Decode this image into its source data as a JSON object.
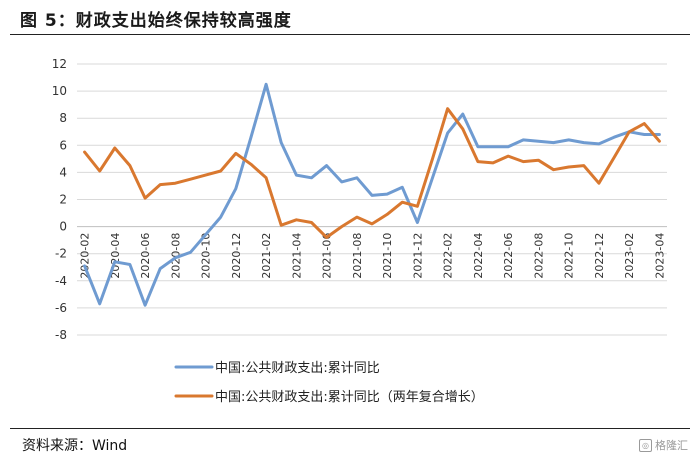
{
  "figure": {
    "title": "图 5：财政支出始终保持较高强度",
    "source": "资料来源：Wind",
    "watermark": "格隆汇"
  },
  "chart_data": {
    "type": "line",
    "title": "",
    "xlabel": "",
    "ylabel": "",
    "ylim": [
      -8,
      12
    ],
    "yticks": [
      -8,
      -6,
      -4,
      -2,
      0,
      2,
      4,
      6,
      8,
      10,
      12
    ],
    "x": [
      "2020-02",
      "2020-03",
      "2020-04",
      "2020-05",
      "2020-06",
      "2020-07",
      "2020-08",
      "2020-09",
      "2020-10",
      "2020-11",
      "2020-12",
      "2021-01",
      "2021-02",
      "2021-03",
      "2021-04",
      "2021-05",
      "2021-06",
      "2021-07",
      "2021-08",
      "2021-09",
      "2021-10",
      "2021-11",
      "2021-12",
      "2022-01",
      "2022-02",
      "2022-03",
      "2022-04",
      "2022-05",
      "2022-06",
      "2022-07",
      "2022-08",
      "2022-09",
      "2022-10",
      "2022-11",
      "2022-12",
      "2023-01",
      "2023-02",
      "2023-03",
      "2023-04"
    ],
    "xtick_labels": [
      "2020-02",
      "2020-04",
      "2020-06",
      "2020-08",
      "2020-10",
      "2020-12",
      "2021-02",
      "2021-04",
      "2021-06",
      "2021-08",
      "2021-10",
      "2021-12",
      "2022-02",
      "2022-04",
      "2022-06",
      "2022-08",
      "2022-10",
      "2022-12",
      "2023-02",
      "2023-04"
    ],
    "grid": true,
    "legend_position": "bottom-left",
    "series": [
      {
        "name": "中国:公共财政支出:累计同比",
        "color": "#6f9bd1",
        "values": [
          -2.9,
          -5.7,
          -2.6,
          -2.8,
          -5.8,
          -3.1,
          -2.3,
          -1.9,
          -0.6,
          0.7,
          2.8,
          6.6,
          10.5,
          6.2,
          3.8,
          3.6,
          4.5,
          3.3,
          3.6,
          2.3,
          2.4,
          2.9,
          0.3,
          3.6,
          6.9,
          8.3,
          5.9,
          5.9,
          5.9,
          6.4,
          6.3,
          6.2,
          6.4,
          6.2,
          6.1,
          6.6,
          7.0,
          6.8,
          6.8
        ]
      },
      {
        "name": "中国:公共财政支出:累计同比（两年复合增长）",
        "color": "#d9782f",
        "values": [
          5.5,
          4.1,
          5.8,
          4.5,
          2.1,
          3.1,
          3.2,
          3.5,
          3.8,
          4.1,
          5.4,
          4.6,
          3.6,
          0.1,
          0.5,
          0.3,
          -0.8,
          0.0,
          0.7,
          0.2,
          0.9,
          1.8,
          1.5,
          5.0,
          8.7,
          7.2,
          4.8,
          4.7,
          5.2,
          4.8,
          4.9,
          4.2,
          4.4,
          4.5,
          3.2,
          5.1,
          7.0,
          7.6,
          6.3
        ]
      }
    ]
  }
}
